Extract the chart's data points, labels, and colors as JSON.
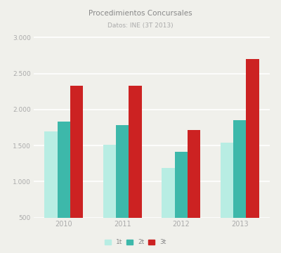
{
  "title": "Procedimientos Concursales",
  "subtitle": "Datos: INE (3T 2013)",
  "years": [
    "2010",
    "2011",
    "2012",
    "2013"
  ],
  "series": {
    "1t": [
      1700,
      1510,
      1190,
      1545
    ],
    "2t": [
      1830,
      1780,
      1410,
      1850
    ],
    "3t": [
      2330,
      2330,
      1720,
      2700
    ]
  },
  "colors": {
    "1t": "#b8ede3",
    "2t": "#3db8aa",
    "3t": "#cc2222"
  },
  "ylim": [
    500,
    3100
  ],
  "yticks": [
    500,
    1000,
    1500,
    2000,
    2500,
    3000
  ],
  "ytick_labels": [
    "500",
    "1.000",
    "1.500",
    "2.000",
    "2.500",
    "3.000"
  ],
  "background_color": "#f0f0eb",
  "grid_color": "#ffffff",
  "bar_width": 0.22,
  "legend_labels": [
    "1t",
    "2t",
    "3t"
  ]
}
